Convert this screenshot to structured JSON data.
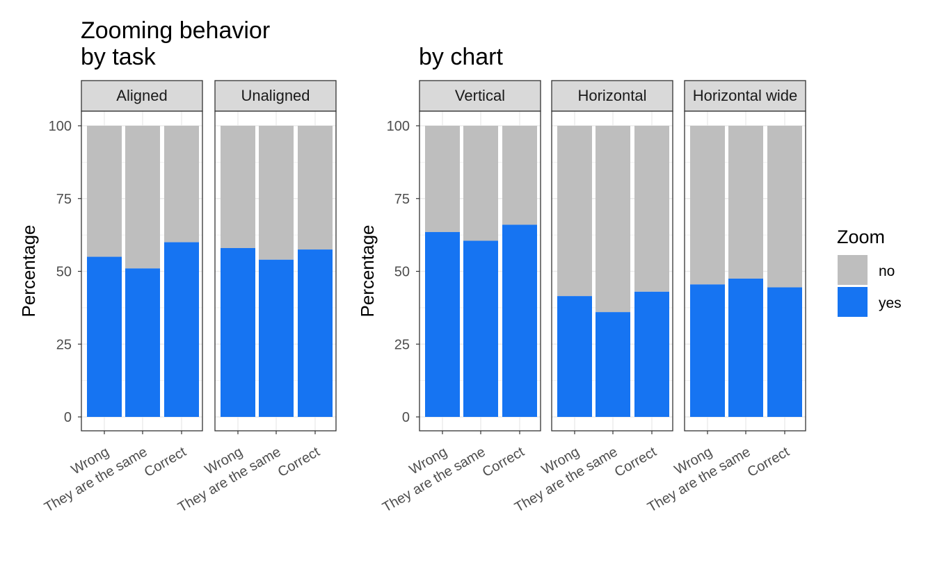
{
  "chart_data": [
    {
      "type": "bar",
      "stacked": true,
      "title": "Zooming behavior\nby task",
      "ylabel": "Percentage",
      "ylim": [
        0,
        100
      ],
      "yticks": [
        0,
        25,
        50,
        75,
        100
      ],
      "categories": [
        "Wrong",
        "They are the same",
        "Correct"
      ],
      "facets": [
        {
          "label": "Aligned",
          "series": [
            {
              "name": "yes",
              "values": [
                55,
                51,
                60
              ]
            },
            {
              "name": "no",
              "values": [
                45,
                49,
                40
              ]
            }
          ]
        },
        {
          "label": "Unaligned",
          "series": [
            {
              "name": "yes",
              "values": [
                58,
                54,
                57.5
              ]
            },
            {
              "name": "no",
              "values": [
                42,
                46,
                42.5
              ]
            }
          ]
        }
      ]
    },
    {
      "type": "bar",
      "stacked": true,
      "title": "by chart",
      "ylabel": "Percentage",
      "ylim": [
        0,
        100
      ],
      "yticks": [
        0,
        25,
        50,
        75,
        100
      ],
      "categories": [
        "Wrong",
        "They are the same",
        "Correct"
      ],
      "facets": [
        {
          "label": "Vertical",
          "series": [
            {
              "name": "yes",
              "values": [
                63.5,
                60.5,
                66
              ]
            },
            {
              "name": "no",
              "values": [
                36.5,
                39.5,
                34
              ]
            }
          ]
        },
        {
          "label": "Horizontal",
          "series": [
            {
              "name": "yes",
              "values": [
                41.5,
                36,
                43
              ]
            },
            {
              "name": "no",
              "values": [
                58.5,
                64,
                57
              ]
            }
          ]
        },
        {
          "label": "Horizontal wide",
          "series": [
            {
              "name": "yes",
              "values": [
                45.5,
                47.5,
                44.5
              ]
            },
            {
              "name": "no",
              "values": [
                54.5,
                52.5,
                55.5
              ]
            }
          ]
        }
      ]
    }
  ],
  "legend": {
    "title": "Zoom",
    "position": "right",
    "items": [
      {
        "label": "no",
        "color": "#bebebe"
      },
      {
        "label": "yes",
        "color": "#1674f2"
      }
    ]
  },
  "colors": {
    "yes": "#1674f2",
    "no": "#bebebe",
    "strip": "#d9d9d9",
    "grid": "#ebebeb"
  }
}
